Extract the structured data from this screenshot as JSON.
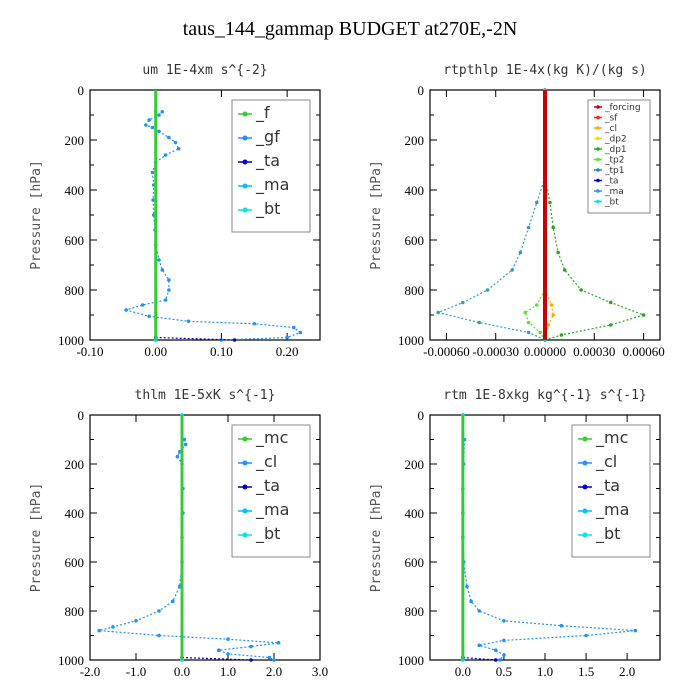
{
  "page_title": "taus_144_gammap  BUDGET at270E,-2N",
  "chart_data": [
    {
      "type": "line",
      "title": "um  1E-4xm s^{-2}",
      "ylabel": "Pressure [hPa]",
      "ylim": [
        1000,
        0
      ],
      "xlim": [
        -0.1,
        0.25
      ],
      "xticks": [
        -0.1,
        0.0,
        0.1,
        0.2
      ],
      "xtick_labels": [
        "-0.10",
        "0.00",
        "0.10",
        "0.20"
      ],
      "yticks": [
        0,
        200,
        400,
        600,
        800,
        1000
      ],
      "legend": "top-right",
      "series": [
        {
          "name": "_f",
          "color": "#33cc33",
          "values": [
            [
              0,
              87
            ],
            [
              0,
              1000
            ]
          ]
        },
        {
          "name": "_gf",
          "color": "#1e90ff",
          "values": [
            [
              0.01,
              87
            ],
            [
              0.005,
              100
            ],
            [
              -0.01,
              120
            ],
            [
              -0.015,
              140
            ],
            [
              -0.005,
              150
            ],
            [
              0.005,
              165
            ],
            [
              0.02,
              190
            ],
            [
              0.03,
              210
            ],
            [
              0.035,
              235
            ],
            [
              0.015,
              260
            ],
            [
              0.0,
              290
            ],
            [
              -0.005,
              330
            ],
            [
              -0.003,
              380
            ],
            [
              -0.004,
              440
            ],
            [
              -0.003,
              500
            ],
            [
              -0.001,
              560
            ],
            [
              0.0,
              620
            ],
            [
              0.005,
              680
            ],
            [
              0.01,
              720
            ],
            [
              0.02,
              760
            ],
            [
              0.02,
              800
            ],
            [
              0.015,
              840
            ],
            [
              -0.02,
              860
            ],
            [
              -0.045,
              880
            ],
            [
              -0.01,
              905
            ],
            [
              0.05,
              925
            ],
            [
              0.15,
              935
            ],
            [
              0.21,
              950
            ],
            [
              0.22,
              970
            ],
            [
              0.2,
              990
            ],
            [
              0.1,
              1000
            ]
          ]
        },
        {
          "name": "_ta",
          "color": "#0000cc",
          "values": [
            [
              0.0,
              990
            ],
            [
              0.12,
              1000
            ]
          ]
        },
        {
          "name": "_ma",
          "color": "#00bfff",
          "values": [
            [
              0.0,
              87
            ],
            [
              0.0,
              1000
            ]
          ]
        },
        {
          "name": "_bt",
          "color": "#00e5e5",
          "values": [
            [
              0.0,
              87
            ],
            [
              0.0,
              1000
            ]
          ]
        }
      ]
    },
    {
      "type": "line",
      "title": "rtpthlp  1E-4x(kg K)/(kg s)",
      "ylabel": "Pressure [hPa]",
      "ylim": [
        1000,
        0
      ],
      "xlim": [
        -0.0007,
        0.0007
      ],
      "xticks": [
        -0.0006,
        -0.0003,
        0.0,
        0.0003,
        0.0006
      ],
      "xtick_labels": [
        "-0.00060",
        "-0.00030",
        "0.00000",
        "0.00030",
        "0.00060"
      ],
      "yticks": [
        0,
        200,
        400,
        600,
        800,
        1000
      ],
      "legend": "top-right",
      "series": [
        {
          "name": "_forcing",
          "color": "#cc0000",
          "values": [
            [
              0,
              0
            ],
            [
              0,
              1000
            ]
          ]
        },
        {
          "name": "_sf",
          "color": "#ff2020",
          "values": [
            [
              0,
              0
            ],
            [
              0,
              1000
            ]
          ]
        },
        {
          "name": "_cl",
          "color": "#ffaa00",
          "values": [
            [
              0,
              800
            ],
            [
              4e-05,
              860
            ],
            [
              5e-05,
              900
            ],
            [
              2e-05,
              940
            ],
            [
              0,
              1000
            ]
          ]
        },
        {
          "name": "_dp2",
          "color": "#ffd700",
          "values": [
            [
              0,
              0
            ],
            [
              0,
              1000
            ]
          ]
        },
        {
          "name": "_dp1",
          "color": "#22aa22",
          "values": [
            [
              0,
              350
            ],
            [
              3e-05,
              450
            ],
            [
              5e-05,
              550
            ],
            [
              8e-05,
              650
            ],
            [
              0.00012,
              720
            ],
            [
              0.00022,
              800
            ],
            [
              0.0004,
              850
            ],
            [
              0.0006,
              900
            ],
            [
              0.0004,
              940
            ],
            [
              0.0001,
              980
            ],
            [
              0,
              1000
            ]
          ]
        },
        {
          "name": "_tp2",
          "color": "#66dd33",
          "values": [
            [
              0,
              800
            ],
            [
              -5e-05,
              860
            ],
            [
              -0.00012,
              890
            ],
            [
              -0.0001,
              930
            ],
            [
              -3e-05,
              970
            ],
            [
              0,
              1000
            ]
          ]
        },
        {
          "name": "_tp1",
          "color": "#2288bb",
          "values": [
            [
              0,
              0
            ],
            [
              0,
              1000
            ]
          ]
        },
        {
          "name": "_ta",
          "color": "#0000cc",
          "values": [
            [
              0,
              0
            ],
            [
              0,
              1000
            ]
          ]
        },
        {
          "name": "_ma",
          "color": "#3399cc",
          "values": [
            [
              0,
              350
            ],
            [
              -5e-05,
              450
            ],
            [
              -0.0001,
              550
            ],
            [
              -0.00015,
              650
            ],
            [
              -0.0002,
              720
            ],
            [
              -0.00035,
              800
            ],
            [
              -0.0005,
              850
            ],
            [
              -0.00065,
              890
            ],
            [
              -0.0004,
              930
            ],
            [
              -0.0001,
              970
            ],
            [
              0,
              1000
            ]
          ]
        },
        {
          "name": "_bt",
          "color": "#00e5e5",
          "values": [
            [
              0,
              0
            ],
            [
              0,
              1000
            ]
          ]
        }
      ]
    },
    {
      "type": "line",
      "title": "thlm  1E-5xK s^{-1}",
      "ylabel": "Pressure [hPa]",
      "ylim": [
        1000,
        0
      ],
      "xlim": [
        -2.0,
        3.0
      ],
      "xticks": [
        -2.0,
        -1.0,
        0.0,
        1.0,
        2.0,
        3.0
      ],
      "xtick_labels": [
        "-2.0",
        "-1.0",
        "0.0",
        "1.0",
        "2.0",
        "3.0"
      ],
      "yticks": [
        0,
        200,
        400,
        600,
        800,
        1000
      ],
      "legend": "top-right",
      "series": [
        {
          "name": "_mc",
          "color": "#33cc33",
          "values": [
            [
              0,
              0
            ],
            [
              0,
              1000
            ]
          ]
        },
        {
          "name": "_cl",
          "color": "#1e90ff",
          "values": [
            [
              0.05,
              100
            ],
            [
              0.08,
              120
            ],
            [
              -0.05,
              150
            ],
            [
              -0.1,
              170
            ],
            [
              0.0,
              200
            ],
            [
              0.02,
              300
            ],
            [
              0.02,
              400
            ],
            [
              0.0,
              500
            ],
            [
              0.0,
              600
            ],
            [
              -0.05,
              700
            ],
            [
              -0.2,
              760
            ],
            [
              -0.5,
              800
            ],
            [
              -1.0,
              840
            ],
            [
              -1.5,
              865
            ],
            [
              -1.8,
              880
            ],
            [
              -0.5,
              900
            ],
            [
              1.0,
              915
            ],
            [
              2.1,
              930
            ],
            [
              1.5,
              945
            ],
            [
              0.8,
              960
            ],
            [
              1.0,
              975
            ],
            [
              1.9,
              990
            ],
            [
              2.0,
              1000
            ]
          ]
        },
        {
          "name": "_ta",
          "color": "#0000cc",
          "values": [
            [
              0,
              990
            ],
            [
              1.5,
              1000
            ]
          ]
        },
        {
          "name": "_ma",
          "color": "#00bfff",
          "values": [
            [
              0,
              0
            ],
            [
              0,
              1000
            ]
          ]
        },
        {
          "name": "_bt",
          "color": "#00e5e5",
          "values": [
            [
              0,
              0
            ],
            [
              0,
              1000
            ]
          ]
        }
      ]
    },
    {
      "type": "line",
      "title": "rtm  1E-8xkg kg^{-1} s^{-1}",
      "ylabel": "Pressure [hPa]",
      "ylim": [
        1000,
        0
      ],
      "xlim": [
        -0.4,
        2.4
      ],
      "xticks": [
        0.0,
        0.5,
        1.0,
        1.5,
        2.0
      ],
      "xtick_labels": [
        "0.0",
        "0.5",
        "1.0",
        "1.5",
        "2.0"
      ],
      "yticks": [
        0,
        200,
        400,
        600,
        800,
        1000
      ],
      "legend": "top-right",
      "series": [
        {
          "name": "_mc",
          "color": "#33cc33",
          "values": [
            [
              0,
              0
            ],
            [
              0,
              1000
            ]
          ]
        },
        {
          "name": "_cl",
          "color": "#1e90ff",
          "values": [
            [
              0.02,
              100
            ],
            [
              0.01,
              200
            ],
            [
              0.0,
              300
            ],
            [
              0.0,
              400
            ],
            [
              0.0,
              500
            ],
            [
              0.01,
              600
            ],
            [
              0.05,
              700
            ],
            [
              0.1,
              760
            ],
            [
              0.2,
              800
            ],
            [
              0.5,
              840
            ],
            [
              1.2,
              860
            ],
            [
              2.1,
              880
            ],
            [
              1.5,
              900
            ],
            [
              0.5,
              920
            ],
            [
              0.2,
              940
            ],
            [
              0.4,
              960
            ],
            [
              0.5,
              980
            ],
            [
              0.45,
              1000
            ]
          ]
        },
        {
          "name": "_ta",
          "color": "#0000cc",
          "values": [
            [
              0,
              990
            ],
            [
              0.4,
              1000
            ]
          ]
        },
        {
          "name": "_ma",
          "color": "#00bfff",
          "values": [
            [
              0,
              0
            ],
            [
              0,
              1000
            ]
          ]
        },
        {
          "name": "_bt",
          "color": "#00e5e5",
          "values": [
            [
              0,
              0
            ],
            [
              0,
              1000
            ]
          ]
        }
      ]
    }
  ]
}
